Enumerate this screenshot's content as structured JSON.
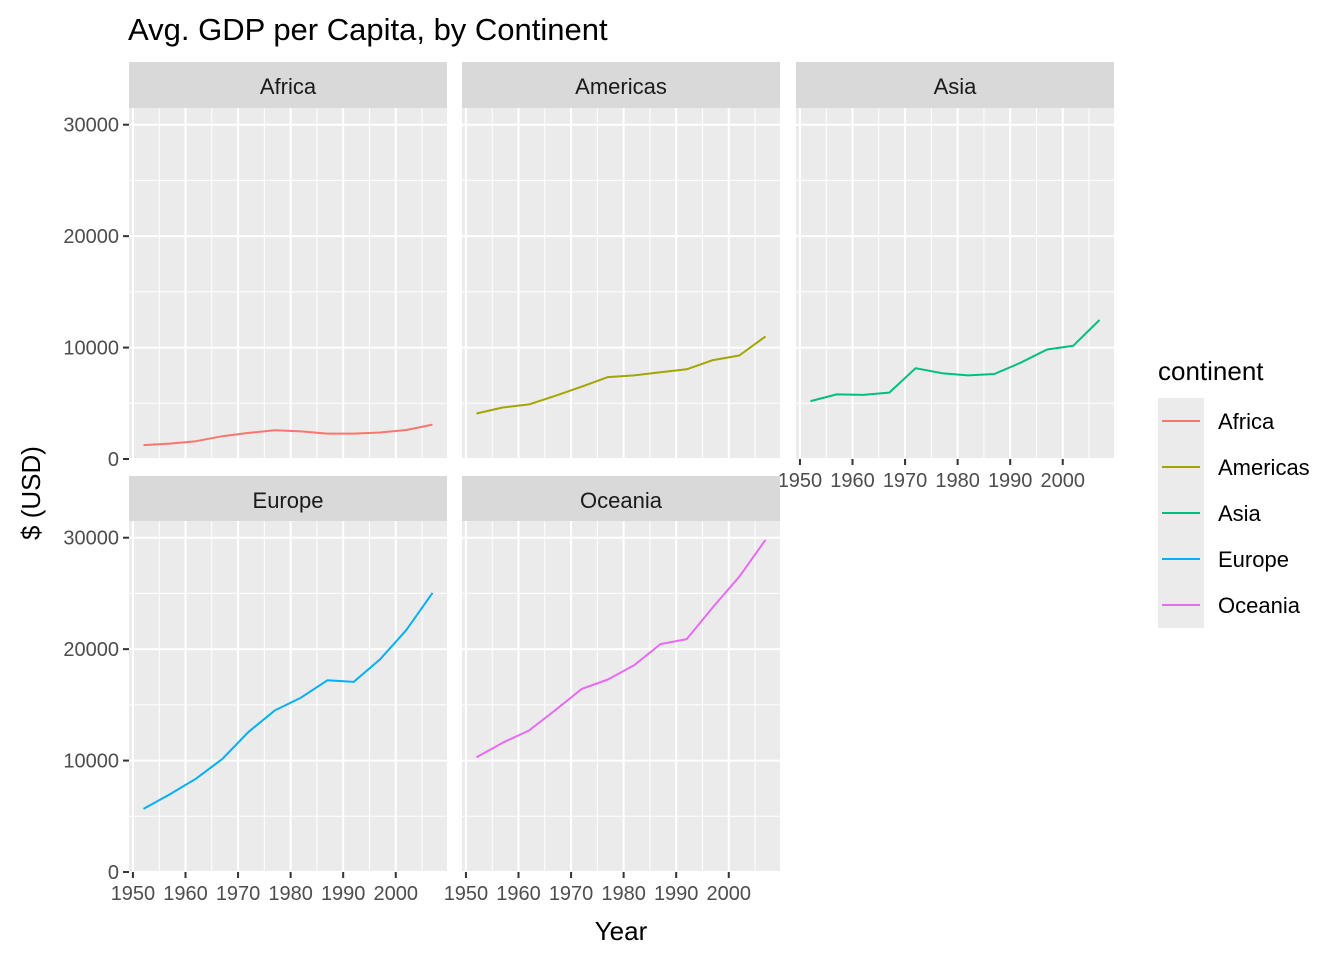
{
  "chart_data": {
    "type": "line",
    "title": "Avg. GDP per Capita, by Continent",
    "xlabel": "Year",
    "ylabel": "$ (USD)",
    "xlim": [
      1949.25,
      2009.75
    ],
    "ylim": [
      0,
      31500
    ],
    "x_ticks": [
      1950,
      1960,
      1970,
      1980,
      1990,
      2000
    ],
    "x_tick_labels": [
      "1950",
      "1960",
      "1970",
      "1980",
      "1990",
      "2000"
    ],
    "y_ticks": [
      0,
      10000,
      20000,
      30000
    ],
    "y_tick_labels": [
      "0",
      "10000",
      "20000",
      "30000"
    ],
    "grid": true,
    "legend": {
      "title": "continent",
      "placement": "right"
    },
    "x": [
      1952,
      1957,
      1962,
      1967,
      1972,
      1977,
      1982,
      1987,
      1992,
      1997,
      2002,
      2007
    ],
    "series": [
      {
        "name": "Africa",
        "color": "#F8766D",
        "values": [
          1250,
          1385,
          1600,
          2050,
          2340,
          2585,
          2480,
          2280,
          2280,
          2380,
          2600,
          3090
        ]
      },
      {
        "name": "Americas",
        "color": "#A3A500",
        "values": [
          4080,
          4620,
          4900,
          5670,
          6490,
          7350,
          7500,
          7790,
          8050,
          8880,
          9290,
          11000
        ]
      },
      {
        "name": "Asia",
        "color": "#00BF7D",
        "values": [
          5200,
          5800,
          5750,
          5960,
          8150,
          7700,
          7500,
          7630,
          8640,
          9830,
          10170,
          12470
        ]
      },
      {
        "name": "Europe",
        "color": "#00B0F6",
        "values": [
          5660,
          6960,
          8370,
          10140,
          12580,
          14500,
          15650,
          17200,
          17060,
          19080,
          21710,
          25050
        ]
      },
      {
        "name": "Oceania",
        "color": "#E76BF3",
        "values": [
          10300,
          11600,
          12700,
          14520,
          16420,
          17280,
          18550,
          20450,
          20900,
          23770,
          26500,
          29800
        ]
      }
    ]
  }
}
